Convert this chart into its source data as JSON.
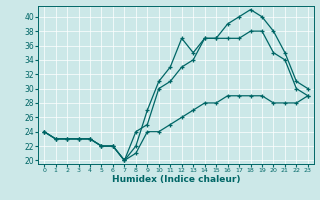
{
  "xlabel": "Humidex (Indice chaleur)",
  "xlim": [
    -0.5,
    23.5
  ],
  "ylim": [
    19.5,
    41.5
  ],
  "xticks": [
    0,
    1,
    2,
    3,
    4,
    5,
    6,
    7,
    8,
    9,
    10,
    11,
    12,
    13,
    14,
    15,
    16,
    17,
    18,
    19,
    20,
    21,
    22,
    23
  ],
  "yticks": [
    20,
    22,
    24,
    26,
    28,
    30,
    32,
    34,
    36,
    38,
    40
  ],
  "bg_color": "#cce8e8",
  "line_color": "#006666",
  "grid_color": "#b0d0d0",
  "x": [
    0,
    1,
    2,
    3,
    4,
    5,
    6,
    7,
    8,
    9,
    10,
    11,
    12,
    13,
    14,
    15,
    16,
    17,
    18,
    19,
    20,
    21,
    22,
    23
  ],
  "y_top": [
    24,
    23,
    23,
    23,
    23,
    22,
    22,
    20,
    22,
    27,
    31,
    33,
    37,
    35,
    37,
    37,
    39,
    40,
    41,
    40,
    38,
    35,
    31,
    30
  ],
  "y_mid": [
    24,
    23,
    23,
    23,
    23,
    22,
    22,
    20,
    24,
    25,
    30,
    31,
    33,
    34,
    37,
    37,
    37,
    37,
    38,
    38,
    35,
    34,
    30,
    29
  ],
  "y_bot": [
    24,
    23,
    23,
    23,
    23,
    22,
    22,
    20,
    21,
    24,
    24,
    25,
    26,
    27,
    28,
    28,
    29,
    29,
    29,
    29,
    28,
    28,
    28,
    29
  ]
}
